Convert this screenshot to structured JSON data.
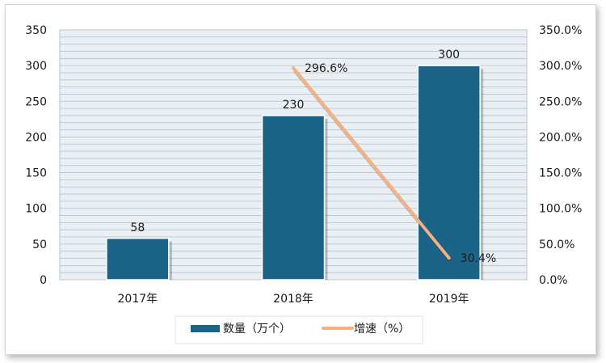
{
  "chart_data": {
    "type": "bar",
    "categories": [
      "2017年",
      "2018年",
      "2019年"
    ],
    "series": [
      {
        "name": "数量（万个）",
        "type": "bar",
        "axis": "left",
        "values": [
          58,
          230,
          300
        ],
        "labels": [
          "58",
          "230",
          "300"
        ]
      },
      {
        "name": "增速（%）",
        "type": "line",
        "axis": "right",
        "values": [
          null,
          296.6,
          30.4
        ],
        "labels": [
          "",
          "296.6%",
          "30.4%"
        ]
      }
    ],
    "y_left": {
      "range": [
        0,
        350
      ],
      "ticks": [
        "0",
        "50",
        "100",
        "150",
        "200",
        "250",
        "300",
        "350"
      ]
    },
    "y_right": {
      "range": [
        0,
        350
      ],
      "ticks": [
        "0.0%",
        "50.0%",
        "100.0%",
        "150.0%",
        "200.0%",
        "250.0%",
        "300.0%",
        "350.0%"
      ]
    },
    "grid": true,
    "legend_position": "bottom",
    "colors": {
      "bar": "#1b6387",
      "line": "#f4b183",
      "grid": "#b4c0cc",
      "plot_bg": "#eaeff4"
    }
  }
}
